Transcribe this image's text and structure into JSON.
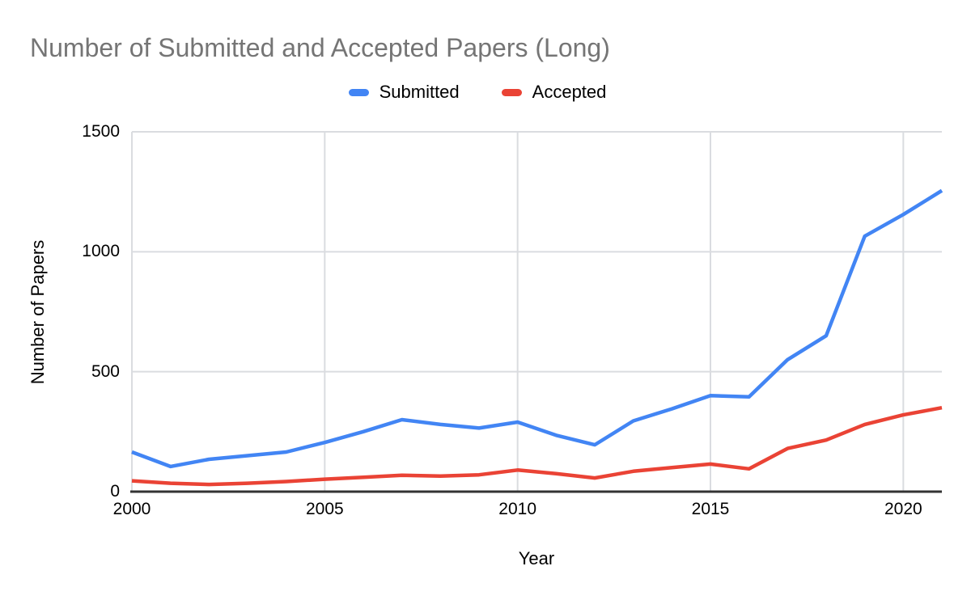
{
  "title": "Number of Submitted and Accepted Papers (Long)",
  "legend": {
    "items": [
      {
        "label": "Submitted",
        "color": "#4285f4"
      },
      {
        "label": "Accepted",
        "color": "#ea4335"
      }
    ]
  },
  "chart_data": {
    "type": "line",
    "title": "Number of Submitted and Accepted Papers (Long)",
    "xlabel": "Year",
    "ylabel": "Number of Papers",
    "x": [
      2000,
      2001,
      2002,
      2003,
      2004,
      2005,
      2006,
      2007,
      2008,
      2009,
      2010,
      2011,
      2012,
      2013,
      2014,
      2015,
      2016,
      2017,
      2018,
      2019,
      2020,
      2021
    ],
    "series": [
      {
        "name": "Submitted",
        "color": "#4285f4",
        "values": [
          165,
          105,
          135,
          150,
          165,
          205,
          250,
          300,
          280,
          265,
          290,
          235,
          195,
          295,
          345,
          400,
          395,
          550,
          650,
          1065,
          1155,
          1255
        ]
      },
      {
        "name": "Accepted",
        "color": "#ea4335",
        "values": [
          45,
          35,
          30,
          35,
          42,
          52,
          60,
          68,
          65,
          70,
          90,
          75,
          57,
          85,
          100,
          115,
          95,
          180,
          215,
          280,
          320,
          350
        ]
      }
    ],
    "xlim": [
      2000,
      2021
    ],
    "ylim": [
      0,
      1500
    ],
    "xticks": [
      2000,
      2005,
      2010,
      2015,
      2020
    ],
    "yticks": [
      0,
      500,
      1000,
      1500
    ],
    "grid": true,
    "legend_position": "top"
  },
  "colors": {
    "title_text": "#757575",
    "axis_text": "#000000",
    "gridline": "#dadce0",
    "baseline": "#333333",
    "background": "#ffffff"
  }
}
